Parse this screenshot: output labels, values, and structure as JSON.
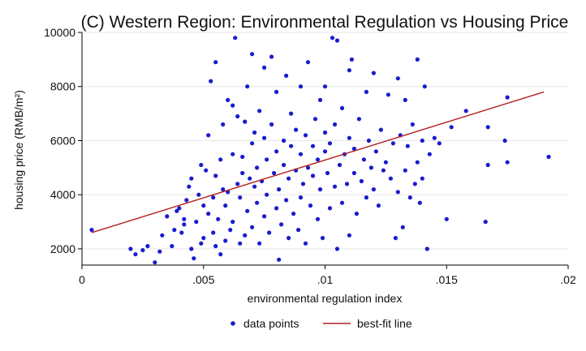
{
  "chart_data": {
    "type": "scatter",
    "title": "(C) Western Region: Environmental Regulation vs Housing Price",
    "xlabel": "environmental regulation index",
    "ylabel": "housing price (RMB/m²)",
    "xlim": [
      0,
      0.02
    ],
    "ylim": [
      1400,
      10000
    ],
    "x_ticks": [
      0,
      0.005,
      0.01,
      0.015,
      0.02
    ],
    "x_tick_labels": [
      "0",
      ".005",
      ".01",
      ".015",
      ".02"
    ],
    "y_ticks": [
      2000,
      4000,
      6000,
      8000,
      10000
    ],
    "y_tick_labels": [
      "2000",
      "4000",
      "6000",
      "8000",
      "10000"
    ],
    "grid": {
      "horizontal": true,
      "vertical": false
    },
    "legend_position": "bottom",
    "colors": {
      "points": "#1a1acd",
      "fit_line": "#b22222",
      "grid": "#e6e6e6"
    },
    "series": [
      {
        "name": "data points",
        "kind": "scatter",
        "points": [
          [
            0.0004,
            2700
          ],
          [
            0.002,
            2000
          ],
          [
            0.0022,
            1800
          ],
          [
            0.0025,
            1950
          ],
          [
            0.0027,
            2100
          ],
          [
            0.003,
            1500
          ],
          [
            0.0032,
            1900
          ],
          [
            0.0033,
            2500
          ],
          [
            0.0035,
            3200
          ],
          [
            0.0037,
            2100
          ],
          [
            0.0038,
            2700
          ],
          [
            0.0039,
            3400
          ],
          [
            0.004,
            3500
          ],
          [
            0.0041,
            2600
          ],
          [
            0.0042,
            3100
          ],
          [
            0.0042,
            2900
          ],
          [
            0.0043,
            3800
          ],
          [
            0.0044,
            4300
          ],
          [
            0.0045,
            4600
          ],
          [
            0.0045,
            2000
          ],
          [
            0.0046,
            1650
          ],
          [
            0.0047,
            3000
          ],
          [
            0.0048,
            4000
          ],
          [
            0.0049,
            2200
          ],
          [
            0.0049,
            5100
          ],
          [
            0.005,
            3600
          ],
          [
            0.005,
            2400
          ],
          [
            0.0051,
            4900
          ],
          [
            0.0052,
            3300
          ],
          [
            0.0052,
            6200
          ],
          [
            0.0053,
            8200
          ],
          [
            0.0054,
            3900
          ],
          [
            0.0054,
            2600
          ],
          [
            0.0055,
            4700
          ],
          [
            0.0055,
            2100
          ],
          [
            0.0055,
            8900
          ],
          [
            0.0056,
            3100
          ],
          [
            0.0057,
            1800
          ],
          [
            0.0057,
            5300
          ],
          [
            0.0058,
            6600
          ],
          [
            0.0058,
            4200
          ],
          [
            0.0059,
            2300
          ],
          [
            0.0059,
            3600
          ],
          [
            0.006,
            7500
          ],
          [
            0.006,
            4100
          ],
          [
            0.0061,
            2700
          ],
          [
            0.0062,
            7300
          ],
          [
            0.0062,
            5500
          ],
          [
            0.0062,
            3000
          ],
          [
            0.0063,
            9800
          ],
          [
            0.0064,
            4400
          ],
          [
            0.0064,
            6900
          ],
          [
            0.0065,
            2200
          ],
          [
            0.0065,
            3900
          ],
          [
            0.0066,
            5400
          ],
          [
            0.0066,
            4800
          ],
          [
            0.0067,
            2500
          ],
          [
            0.0067,
            6700
          ],
          [
            0.0068,
            8000
          ],
          [
            0.0068,
            3400
          ],
          [
            0.0069,
            4600
          ],
          [
            0.007,
            5900
          ],
          [
            0.007,
            2800
          ],
          [
            0.007,
            9200
          ],
          [
            0.0071,
            4300
          ],
          [
            0.0071,
            6300
          ],
          [
            0.0072,
            3700
          ],
          [
            0.0072,
            5000
          ],
          [
            0.0073,
            7100
          ],
          [
            0.0073,
            2200
          ],
          [
            0.0074,
            4500
          ],
          [
            0.0075,
            6100
          ],
          [
            0.0075,
            8700
          ],
          [
            0.0075,
            3200
          ],
          [
            0.0076,
            5300
          ],
          [
            0.0076,
            4000
          ],
          [
            0.0077,
            2600
          ],
          [
            0.0078,
            6600
          ],
          [
            0.0078,
            9100
          ],
          [
            0.0079,
            4800
          ],
          [
            0.008,
            3500
          ],
          [
            0.008,
            7800
          ],
          [
            0.008,
            5600
          ],
          [
            0.0081,
            1600
          ],
          [
            0.0081,
            4200
          ],
          [
            0.0082,
            2900
          ],
          [
            0.0083,
            6000
          ],
          [
            0.0083,
            5100
          ],
          [
            0.0084,
            3800
          ],
          [
            0.0084,
            8400
          ],
          [
            0.0085,
            4600
          ],
          [
            0.0085,
            2400
          ],
          [
            0.0086,
            5800
          ],
          [
            0.0086,
            7000
          ],
          [
            0.0087,
            3300
          ],
          [
            0.0088,
            4900
          ],
          [
            0.0088,
            6400
          ],
          [
            0.0089,
            2700
          ],
          [
            0.009,
            5500
          ],
          [
            0.009,
            8000
          ],
          [
            0.009,
            3900
          ],
          [
            0.0091,
            4400
          ],
          [
            0.0092,
            6200
          ],
          [
            0.0092,
            2200
          ],
          [
            0.0093,
            5000
          ],
          [
            0.0093,
            8900
          ],
          [
            0.0094,
            3600
          ],
          [
            0.0095,
            5800
          ],
          [
            0.0095,
            4700
          ],
          [
            0.0096,
            6800
          ],
          [
            0.0097,
            3100
          ],
          [
            0.0097,
            5300
          ],
          [
            0.0098,
            7500
          ],
          [
            0.0098,
            4200
          ],
          [
            0.0099,
            2400
          ],
          [
            0.01,
            5600
          ],
          [
            0.01,
            6300
          ],
          [
            0.01,
            8000
          ],
          [
            0.0101,
            4800
          ],
          [
            0.0102,
            3500
          ],
          [
            0.0102,
            5900
          ],
          [
            0.0103,
            9800
          ],
          [
            0.0104,
            4300
          ],
          [
            0.0104,
            6600
          ],
          [
            0.0105,
            9700
          ],
          [
            0.0105,
            2000
          ],
          [
            0.0106,
            5100
          ],
          [
            0.0107,
            7200
          ],
          [
            0.0107,
            3700
          ],
          [
            0.0108,
            5500
          ],
          [
            0.0109,
            4400
          ],
          [
            0.011,
            8600
          ],
          [
            0.011,
            6100
          ],
          [
            0.011,
            2500
          ],
          [
            0.0111,
            9000
          ],
          [
            0.0112,
            4800
          ],
          [
            0.0112,
            5700
          ],
          [
            0.0113,
            3300
          ],
          [
            0.0114,
            6800
          ],
          [
            0.0115,
            4500
          ],
          [
            0.0116,
            5300
          ],
          [
            0.0117,
            7800
          ],
          [
            0.0117,
            3900
          ],
          [
            0.0118,
            6000
          ],
          [
            0.0119,
            5000
          ],
          [
            0.012,
            4200
          ],
          [
            0.012,
            8500
          ],
          [
            0.0121,
            5600
          ],
          [
            0.0122,
            3600
          ],
          [
            0.0123,
            6400
          ],
          [
            0.0124,
            4900
          ],
          [
            0.0125,
            5200
          ],
          [
            0.0126,
            7700
          ],
          [
            0.0127,
            4600
          ],
          [
            0.0128,
            5900
          ],
          [
            0.0129,
            2400
          ],
          [
            0.013,
            8300
          ],
          [
            0.013,
            4100
          ],
          [
            0.0131,
            6200
          ],
          [
            0.0132,
            2800
          ],
          [
            0.0133,
            7500
          ],
          [
            0.0133,
            4900
          ],
          [
            0.0134,
            5800
          ],
          [
            0.0135,
            3900
          ],
          [
            0.0136,
            6600
          ],
          [
            0.0137,
            4400
          ],
          [
            0.0138,
            9000
          ],
          [
            0.0138,
            5200
          ],
          [
            0.0139,
            3700
          ],
          [
            0.014,
            6000
          ],
          [
            0.014,
            4600
          ],
          [
            0.0141,
            8000
          ],
          [
            0.0142,
            2000
          ],
          [
            0.0143,
            5500
          ],
          [
            0.0145,
            6100
          ],
          [
            0.0147,
            5900
          ],
          [
            0.015,
            3100
          ],
          [
            0.0152,
            6500
          ],
          [
            0.0158,
            7100
          ],
          [
            0.0166,
            3000
          ],
          [
            0.0167,
            6500
          ],
          [
            0.0167,
            5100
          ],
          [
            0.0174,
            6000
          ],
          [
            0.0175,
            5200
          ],
          [
            0.0175,
            7600
          ],
          [
            0.0192,
            5400
          ]
        ]
      },
      {
        "name": "best-fit line",
        "kind": "line",
        "points": [
          [
            0.0004,
            2600
          ],
          [
            0.019,
            7800
          ]
        ]
      }
    ]
  }
}
